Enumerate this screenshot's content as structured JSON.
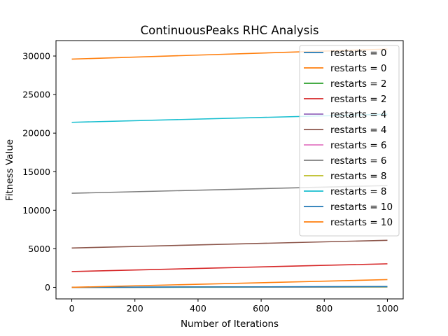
{
  "chart_data": {
    "type": "line",
    "title": "ContinuousPeaks RHC Analysis",
    "xlabel": "Number of Iterations",
    "ylabel": "Fitness Value",
    "xlim": [
      -50,
      1050
    ],
    "ylim": [
      -1500,
      32000
    ],
    "xticks": [
      0,
      200,
      400,
      600,
      800,
      1000
    ],
    "yticks": [
      0,
      5000,
      10000,
      15000,
      20000,
      25000,
      30000
    ],
    "grid": false,
    "legend_position": "top-right",
    "series": [
      {
        "name": "restarts = 0",
        "color": "#1f77b4",
        "x": [
          0,
          1000
        ],
        "y": [
          0,
          100
        ]
      },
      {
        "name": "restarts = 0",
        "color": "#ff7f0e",
        "x": [
          0,
          1000
        ],
        "y": [
          29600,
          30900
        ]
      },
      {
        "name": "restarts = 2",
        "color": "#2ca02c",
        "x": [
          0,
          1000
        ],
        "y": [
          0,
          50
        ]
      },
      {
        "name": "restarts = 2",
        "color": "#d62728",
        "x": [
          0,
          1000
        ],
        "y": [
          2050,
          3050
        ]
      },
      {
        "name": "restarts = 4",
        "color": "#9467bd",
        "x": [
          0,
          1000
        ],
        "y": [
          0,
          60
        ]
      },
      {
        "name": "restarts = 4",
        "color": "#8c564b",
        "x": [
          0,
          1000
        ],
        "y": [
          5100,
          6100
        ]
      },
      {
        "name": "restarts = 6",
        "color": "#e377c2",
        "x": [
          0,
          1000
        ],
        "y": [
          0,
          70
        ]
      },
      {
        "name": "restarts = 6",
        "color": "#7f7f7f",
        "x": [
          0,
          1000
        ],
        "y": [
          12200,
          13200
        ]
      },
      {
        "name": "restarts = 8",
        "color": "#bcbd22",
        "x": [
          0,
          1000
        ],
        "y": [
          0,
          80
        ]
      },
      {
        "name": "restarts = 8",
        "color": "#17becf",
        "x": [
          0,
          1000
        ],
        "y": [
          21400,
          22450
        ]
      },
      {
        "name": "restarts = 10",
        "color": "#1f77b4",
        "x": [
          0,
          1000
        ],
        "y": [
          0,
          100
        ]
      },
      {
        "name": "restarts = 10",
        "color": "#ff7f0e",
        "x": [
          0,
          1000
        ],
        "y": [
          0,
          1000
        ]
      }
    ]
  }
}
